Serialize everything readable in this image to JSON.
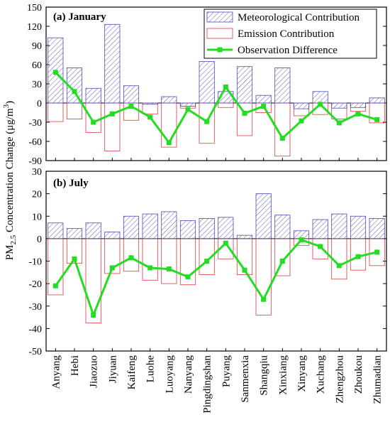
{
  "ylabel": {
    "pre": "PM",
    "sub": "2.5",
    "mid": " Concentration Change (μg/m",
    "sup": "3",
    "post": ")"
  },
  "categories": [
    "Anyang",
    "Hebi",
    "Jiaozuo",
    "Jiyuan",
    "Kaifeng",
    "Luohe",
    "Luoyang",
    "Nanyang",
    "Pingdingshan",
    "Puyang",
    "Sanmenxia",
    "Shangqiu",
    "Xinxiang",
    "Xinyang",
    "Xuchang",
    "Zhengzhou",
    "Zhoukou",
    "Zhumadian"
  ],
  "legend": {
    "meteorological": "Meteorological Contribution",
    "emission": "Emission Contribution",
    "observation": "Observation Difference"
  },
  "colors": {
    "meteorological": "#4b4bb0",
    "emission": "#e05050",
    "observation": "#22dd22"
  },
  "chart_data": [
    {
      "type": "bar",
      "title": "(a) January",
      "ylim": [
        -90,
        150
      ],
      "yticks": [
        -90,
        -60,
        -30,
        0,
        30,
        60,
        90,
        120,
        150
      ],
      "legend_position": "top-right",
      "series": [
        {
          "name": "Meteorological Contribution",
          "values": [
            102,
            55,
            23,
            123,
            27,
            -2,
            10,
            -5,
            65,
            18,
            57,
            12,
            55,
            -9,
            18,
            -8,
            -7,
            8
          ]
        },
        {
          "name": "Emission Contribution",
          "values": [
            -29,
            -25,
            -46,
            -75,
            -27,
            -17,
            -69,
            -8,
            -63,
            -7,
            -51,
            -15,
            -83,
            -20,
            -18,
            -25,
            -13,
            -31
          ]
        },
        {
          "name": "Observation Difference",
          "values": [
            48,
            18,
            -30,
            -17,
            -5,
            -22,
            -62,
            -10,
            -29,
            25,
            -16,
            -5,
            -55,
            -28,
            -2,
            -31,
            -17,
            -26
          ]
        }
      ]
    },
    {
      "type": "bar",
      "title": "(b) July",
      "ylim": [
        -50,
        30
      ],
      "yticks": [
        -50,
        -40,
        -30,
        -20,
        -10,
        0,
        10,
        20,
        30
      ],
      "series": [
        {
          "name": "Meteorological Contribution",
          "values": [
            7,
            4.5,
            7,
            3,
            10,
            11,
            12,
            8,
            9,
            9.5,
            1.5,
            20,
            10.5,
            3.5,
            8.5,
            11,
            10,
            9
          ]
        },
        {
          "name": "Emission Contribution",
          "values": [
            -25,
            -11,
            -37.5,
            -15.5,
            -14.5,
            -18.5,
            -20,
            -20.5,
            -16,
            -9,
            -16,
            -34,
            -16.5,
            -3,
            -9,
            -18,
            -14,
            -12
          ]
        },
        {
          "name": "Observation Difference",
          "values": [
            -21,
            -9,
            -34,
            -13,
            -8.5,
            -13,
            -13.5,
            -17,
            -10,
            -2,
            -14,
            -27,
            -10,
            -0.5,
            -3.5,
            -12,
            -8,
            -6
          ]
        }
      ]
    }
  ]
}
